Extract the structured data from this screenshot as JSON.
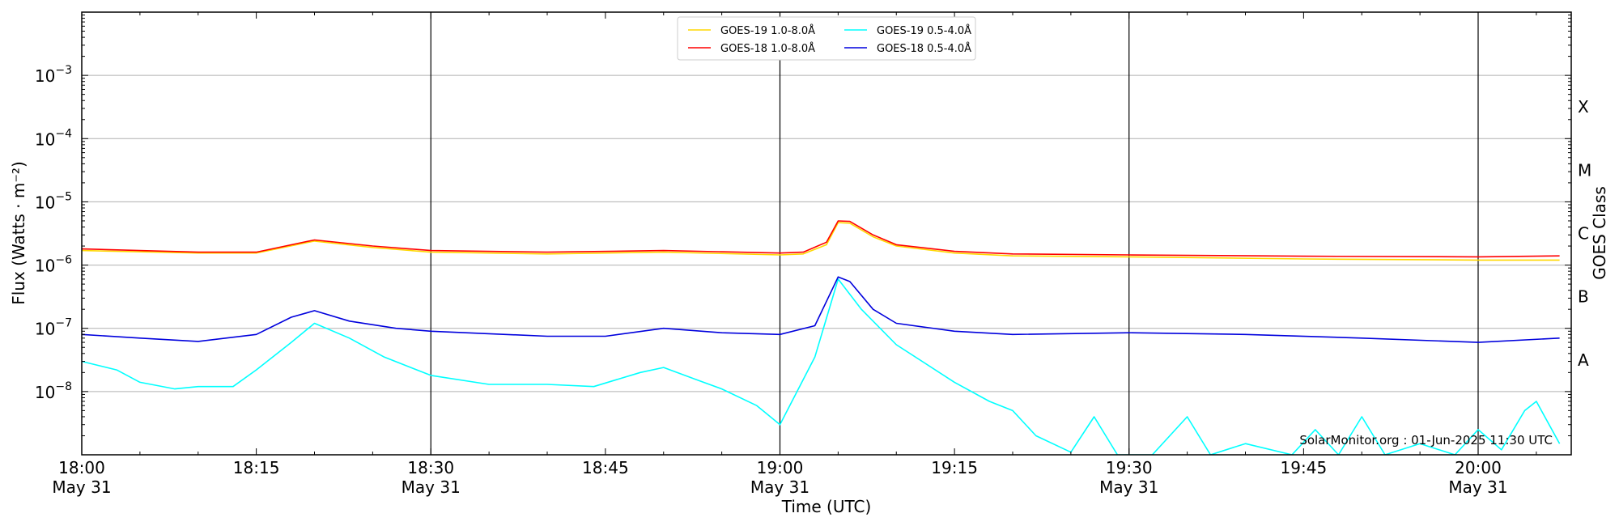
{
  "chart_data": {
    "type": "line",
    "title": "",
    "xlabel": "Time (UTC)",
    "ylabel": "Flux (Watts · m⁻²)",
    "y2label": "GOES Class",
    "yscale": "log",
    "ylim": [
      1e-09,
      0.01
    ],
    "xlim": [
      "2025-05-31T18:00",
      "2025-05-31T20:08"
    ],
    "x_tick_labels": [
      {
        "time": "2025-05-31T18:00",
        "label": "18:00",
        "sublabel": "May 31"
      },
      {
        "time": "2025-05-31T18:15",
        "label": "18:15",
        "sublabel": ""
      },
      {
        "time": "2025-05-31T18:30",
        "label": "18:30",
        "sublabel": "May 31"
      },
      {
        "time": "2025-05-31T18:45",
        "label": "18:45",
        "sublabel": ""
      },
      {
        "time": "2025-05-31T19:00",
        "label": "19:00",
        "sublabel": "May 31"
      },
      {
        "time": "2025-05-31T19:15",
        "label": "19:15",
        "sublabel": ""
      },
      {
        "time": "2025-05-31T19:30",
        "label": "19:30",
        "sublabel": "May 31"
      },
      {
        "time": "2025-05-31T19:45",
        "label": "19:45",
        "sublabel": ""
      },
      {
        "time": "2025-05-31T20:00",
        "label": "20:00",
        "sublabel": "May 31"
      }
    ],
    "y_tick_labels": [
      {
        "value": 1e-08,
        "base": "10",
        "exp": "−8"
      },
      {
        "value": 1e-07,
        "base": "10",
        "exp": "−7"
      },
      {
        "value": 1e-06,
        "base": "10",
        "exp": "−6"
      },
      {
        "value": 1e-05,
        "base": "10",
        "exp": "−5"
      },
      {
        "value": 0.0001,
        "base": "10",
        "exp": "−4"
      },
      {
        "value": 0.001,
        "base": "10",
        "exp": "−3"
      }
    ],
    "goes_classes": [
      {
        "label": "A",
        "value": 3.16e-08
      },
      {
        "label": "B",
        "value": 3.16e-07
      },
      {
        "label": "C",
        "value": 3.16e-06
      },
      {
        "label": "M",
        "value": 3.16e-05
      },
      {
        "label": "X",
        "value": 0.000316
      }
    ],
    "hgrid": [
      1e-08,
      1e-07,
      1e-06,
      1e-05,
      0.0001,
      0.001
    ],
    "vlines": [
      "2025-05-31T18:30",
      "2025-05-31T19:00",
      "2025-05-31T19:30",
      "2025-05-31T20:00"
    ],
    "legend_position": "top-center",
    "credit": "SolarMonitor.org : 01-Jun-2025 11:30 UTC",
    "series": [
      {
        "name": "GOES-19 1.0-8.0Å",
        "color": "#ffd700",
        "x": [
          "2025-05-31T18:00",
          "2025-05-31T18:10",
          "2025-05-31T18:15",
          "2025-05-31T18:20",
          "2025-05-31T18:25",
          "2025-05-31T18:30",
          "2025-05-31T18:40",
          "2025-05-31T18:50",
          "2025-05-31T19:00",
          "2025-05-31T19:02",
          "2025-05-31T19:04",
          "2025-05-31T19:05",
          "2025-05-31T19:06",
          "2025-05-31T19:08",
          "2025-05-31T19:10",
          "2025-05-31T19:15",
          "2025-05-31T19:20",
          "2025-05-31T19:30",
          "2025-05-31T19:45",
          "2025-05-31T20:00",
          "2025-05-31T20:07"
        ],
        "y": [
          1.7e-06,
          1.55e-06,
          1.55e-06,
          2.4e-06,
          1.9e-06,
          1.6e-06,
          1.5e-06,
          1.6e-06,
          1.45e-06,
          1.5e-06,
          2.1e-06,
          4.7e-06,
          4.6e-06,
          2.8e-06,
          2e-06,
          1.55e-06,
          1.4e-06,
          1.35e-06,
          1.25e-06,
          1.2e-06,
          1.2e-06
        ]
      },
      {
        "name": "GOES-18 1.0-8.0Å",
        "color": "#ff0000",
        "x": [
          "2025-05-31T18:00",
          "2025-05-31T18:10",
          "2025-05-31T18:15",
          "2025-05-31T18:20",
          "2025-05-31T18:25",
          "2025-05-31T18:30",
          "2025-05-31T18:40",
          "2025-05-31T18:50",
          "2025-05-31T19:00",
          "2025-05-31T19:02",
          "2025-05-31T19:04",
          "2025-05-31T19:05",
          "2025-05-31T19:06",
          "2025-05-31T19:08",
          "2025-05-31T19:10",
          "2025-05-31T19:15",
          "2025-05-31T19:20",
          "2025-05-31T19:30",
          "2025-05-31T19:45",
          "2025-05-31T20:00",
          "2025-05-31T20:07"
        ],
        "y": [
          1.8e-06,
          1.6e-06,
          1.6e-06,
          2.5e-06,
          2e-06,
          1.7e-06,
          1.6e-06,
          1.7e-06,
          1.55e-06,
          1.6e-06,
          2.3e-06,
          5e-06,
          4.9e-06,
          3e-06,
          2.1e-06,
          1.65e-06,
          1.5e-06,
          1.45e-06,
          1.38e-06,
          1.35e-06,
          1.4e-06
        ]
      },
      {
        "name": "GOES-19 0.5-4.0Å",
        "color": "#00ffff",
        "x": [
          "2025-05-31T18:00",
          "2025-05-31T18:03",
          "2025-05-31T18:05",
          "2025-05-31T18:08",
          "2025-05-31T18:10",
          "2025-05-31T18:13",
          "2025-05-31T18:15",
          "2025-05-31T18:18",
          "2025-05-31T18:20",
          "2025-05-31T18:23",
          "2025-05-31T18:26",
          "2025-05-31T18:30",
          "2025-05-31T18:35",
          "2025-05-31T18:40",
          "2025-05-31T18:44",
          "2025-05-31T18:48",
          "2025-05-31T18:50",
          "2025-05-31T18:53",
          "2025-05-31T18:55",
          "2025-05-31T18:58",
          "2025-05-31T19:00",
          "2025-05-31T19:03",
          "2025-05-31T19:05",
          "2025-05-31T19:07",
          "2025-05-31T19:10",
          "2025-05-31T19:15",
          "2025-05-31T19:18",
          "2025-05-31T19:20",
          "2025-05-31T19:22",
          "2025-05-31T19:25",
          "2025-05-31T19:27",
          "2025-05-31T19:29",
          "2025-05-31T19:32",
          "2025-05-31T19:35",
          "2025-05-31T19:37",
          "2025-05-31T19:40",
          "2025-05-31T19:44",
          "2025-05-31T19:46",
          "2025-05-31T19:48",
          "2025-05-31T19:50",
          "2025-05-31T19:52",
          "2025-05-31T19:55",
          "2025-05-31T19:58",
          "2025-05-31T20:00",
          "2025-05-31T20:02",
          "2025-05-31T20:04",
          "2025-05-31T20:05",
          "2025-05-31T20:07"
        ],
        "y": [
          3e-08,
          2.2e-08,
          1.4e-08,
          1.1e-08,
          1.2e-08,
          1.2e-08,
          2.2e-08,
          6e-08,
          1.2e-07,
          7e-08,
          3.5e-08,
          1.8e-08,
          1.3e-08,
          1.3e-08,
          1.2e-08,
          2e-08,
          2.4e-08,
          1.5e-08,
          1.1e-08,
          6e-09,
          3e-09,
          3.5e-08,
          6e-07,
          2e-07,
          5.5e-08,
          1.4e-08,
          7e-09,
          5e-09,
          2e-09,
          1.1e-09,
          4e-09,
          1e-09,
          1e-09,
          4e-09,
          1e-09,
          1.5e-09,
          1e-09,
          2.5e-09,
          1e-09,
          4e-09,
          1e-09,
          1.5e-09,
          1e-09,
          2.5e-09,
          1.2e-09,
          5e-09,
          7e-09,
          1.5e-09
        ]
      },
      {
        "name": "GOES-18 0.5-4.0Å",
        "color": "#0000dd",
        "x": [
          "2025-05-31T18:00",
          "2025-05-31T18:05",
          "2025-05-31T18:10",
          "2025-05-31T18:15",
          "2025-05-31T18:18",
          "2025-05-31T18:20",
          "2025-05-31T18:23",
          "2025-05-31T18:27",
          "2025-05-31T18:30",
          "2025-05-31T18:40",
          "2025-05-31T18:45",
          "2025-05-31T18:50",
          "2025-05-31T18:55",
          "2025-05-31T19:00",
          "2025-05-31T19:03",
          "2025-05-31T19:05",
          "2025-05-31T19:06",
          "2025-05-31T19:08",
          "2025-05-31T19:10",
          "2025-05-31T19:15",
          "2025-05-31T19:20",
          "2025-05-31T19:30",
          "2025-05-31T19:40",
          "2025-05-31T19:50",
          "2025-05-31T20:00",
          "2025-05-31T20:07"
        ],
        "y": [
          8e-08,
          7e-08,
          6.2e-08,
          8e-08,
          1.5e-07,
          1.9e-07,
          1.3e-07,
          1e-07,
          9e-08,
          7.5e-08,
          7.5e-08,
          1e-07,
          8.5e-08,
          8e-08,
          1.1e-07,
          6.5e-07,
          5.5e-07,
          2e-07,
          1.2e-07,
          9e-08,
          8e-08,
          8.5e-08,
          8e-08,
          7e-08,
          6e-08,
          7e-08
        ]
      }
    ]
  }
}
